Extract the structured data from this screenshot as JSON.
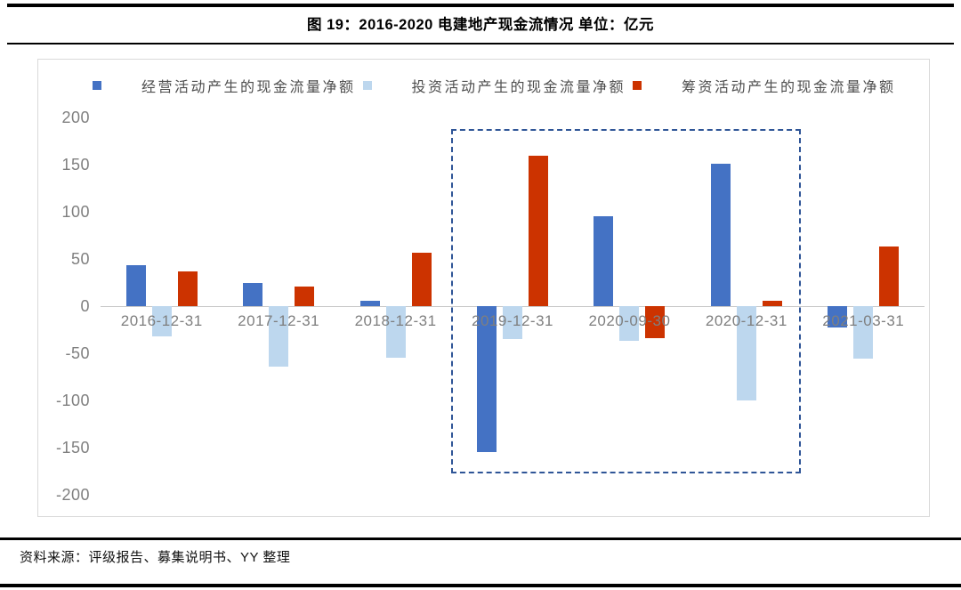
{
  "header": {
    "title": "图 19：2016-2020 电建地产现金流情况 单位：亿元"
  },
  "footer": {
    "source": "资料来源：评级报告、募集说明书、YY 整理"
  },
  "chart_data": {
    "type": "bar",
    "title": "图 19：2016-2020 电建地产现金流情况",
    "unit": "亿元",
    "categories": [
      "2016-12-31",
      "2017-12-31",
      "2018-12-31",
      "2019-12-31",
      "2020-09-30",
      "2020-12-31",
      "2021-03-31"
    ],
    "series": [
      {
        "name": "经营活动产生的现金流量净额",
        "color": "#4472c4",
        "values": [
          43,
          25,
          6,
          -155,
          95,
          151,
          -23
        ]
      },
      {
        "name": "投资活动产生的现金流量净额",
        "color": "#bdd7ee",
        "values": [
          -32,
          -64,
          -55,
          -35,
          -37,
          -100,
          -56
        ]
      },
      {
        "name": "筹资活动产生的现金流量净额",
        "color": "#cc3300",
        "values": [
          37,
          21,
          57,
          159,
          -34,
          6,
          63
        ]
      }
    ],
    "ylim": [
      -200,
      200
    ],
    "yticks": [
      200,
      150,
      100,
      50,
      0,
      -50,
      -100,
      -150,
      -200
    ],
    "xlabel": "",
    "ylabel": "",
    "grid": false,
    "legend_position": "top",
    "highlight_box": {
      "from": 3,
      "to": 5,
      "y_top": 188,
      "y_bottom": -174,
      "color": "#2f5597"
    }
  }
}
